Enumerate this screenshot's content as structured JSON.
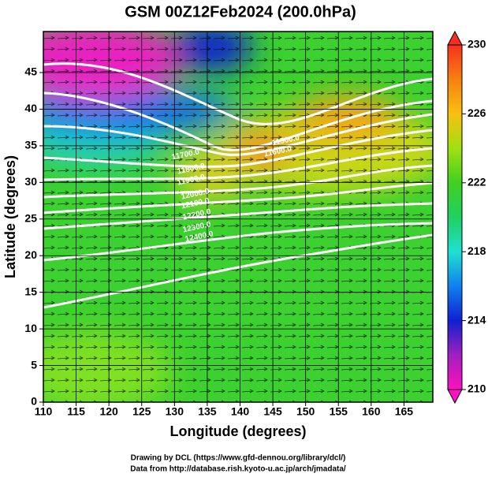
{
  "chart_data": {
    "type": "heatmap",
    "title": "GSM 00Z12Feb2024 (200.0hPa)",
    "xlabel": "Longitude (degrees)",
    "ylabel": "Latitude  (degrees)",
    "xlim": [
      110,
      169.4
    ],
    "xticks": [
      110,
      115,
      120,
      125,
      130,
      135,
      140,
      145,
      150,
      155,
      160,
      165
    ],
    "ylim": [
      0,
      50.6
    ],
    "yticks": [
      0,
      5,
      10,
      15,
      20,
      25,
      30,
      35,
      40,
      45
    ],
    "colorbar": {
      "lim": [
        210,
        230
      ],
      "ticks": [
        210,
        214,
        218,
        222,
        226,
        230
      ]
    },
    "contour_labels": [
      "11500.0",
      "11600.0",
      "11700.0",
      "11800.0",
      "11900.0",
      "12000.0",
      "12100.0",
      "12200.0",
      "12300.0",
      "12400.0"
    ],
    "grid": true
  },
  "credits": [
    "Drawing by DCL (https://www.gfd-dennou.org/library/dcl/)",
    "Data from http://database.rish.kyoto-u.ac.jp/arch/jmadata/"
  ]
}
